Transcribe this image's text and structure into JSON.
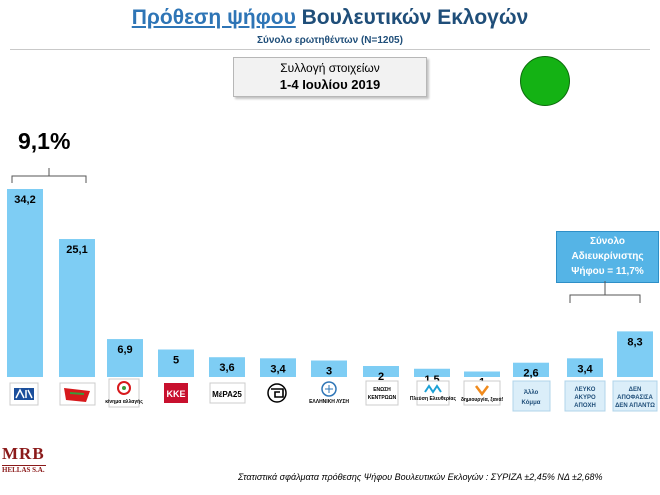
{
  "title": {
    "part1": "Πρόθεση ψήφου",
    "part2": " Βουλευτικών Εκλογών"
  },
  "subtitle": "Σύνολο ερωτηθέντων (N=1205)",
  "collection": {
    "line1": "Συλλογή στοιχείων",
    "line2": "1-4 Ιουλίου 2019"
  },
  "difference_label": "9,1%",
  "undecided": {
    "line1": "Σύνολο",
    "line2": "Αδιευκρίνιστης",
    "line3": "Ψήφου = 11,7%"
  },
  "footnote": "Στατιστικά σφάλματα πρόθεσης Ψήφου Βουλευτικών Εκλογών : ΣΥΡΙΖΑ ±2,45% ΝΔ ±2,68%",
  "brand": {
    "name": "MRB",
    "sub": "HELLAS S.A."
  },
  "colors": {
    "bar": "#7ecdf4",
    "status_dot": "#14b214",
    "title": "#1f4e79",
    "box": "#55b4e6"
  },
  "logo_texts": {
    "kinal": "κίνημα αλλαγής",
    "mera25": "ΜέΡΑ25",
    "ellisi": "ΕΛΛΗΝΙΚΗ ΛΥΣΗ",
    "enosi_a": "ΕΝΩΣΗ",
    "enosi_b": "ΚΕΝΤΡΩΩΝ",
    "plefsi": "Πλεύση Ελευθερίας",
    "dimiourgia": "δημιουργία, ξανά!"
  },
  "chart_data": {
    "type": "bar",
    "categories": [
      "ΝΔ",
      "ΣΥΡΙΖΑ",
      "ΚΙΝΑΛ",
      "ΚΚΕ",
      "ΜέΡΑ25",
      "Χρυσή Αυγή",
      "Ελληνική Λύση",
      "Ένωση Κεντρώων",
      "Πλεύση Ελευθερίας",
      "Δημιουργία, ξανά!",
      "Άλλο Κόμμα",
      "ΛΕΥΚΟ ΑΚΥΡΟ ΑΠΟΧΗ",
      "ΔΕΝ ΑΠΟΦΑΣΙΣΑ ΔΕΝ ΑΠΑΝΤΩ"
    ],
    "values": [
      34.2,
      25.1,
      6.9,
      5,
      3.6,
      3.4,
      3,
      2,
      1.5,
      1,
      2.6,
      3.4,
      8.3
    ],
    "value_labels": [
      "34,2",
      "25,1",
      "6,9",
      "5",
      "3,6",
      "3,4",
      "3",
      "2",
      "1,5",
      "1",
      "2,6",
      "3,4",
      "8,3"
    ],
    "category_text": {
      "allo": [
        "Άλλο",
        "Κόμμα"
      ],
      "lefko": [
        "ΛΕΥΚΟ",
        "ΑΚΥΡΟ",
        "ΑΠΟΧΗ"
      ],
      "den": [
        "ΔΕΝ",
        "ΑΠΟΦΑΣΙΣΑ",
        "ΔΕΝ ΑΠΑΝΤΩ"
      ]
    },
    "ylim": [
      0,
      34.2
    ]
  }
}
